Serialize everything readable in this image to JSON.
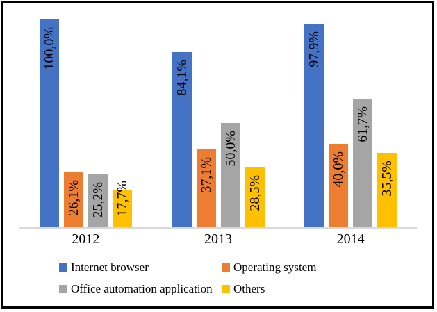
{
  "window": {
    "background": "#ffffff",
    "border_color": "#000000"
  },
  "chart_data": {
    "type": "bar",
    "title": "",
    "xlabel": "",
    "ylabel": "",
    "categories": [
      "2012",
      "2013",
      "2014"
    ],
    "series": [
      {
        "name": "Internet browser",
        "color": "#4472C4",
        "values": [
          100.0,
          84.1,
          97.9
        ],
        "value_labels": [
          "100,0%",
          "84,1%",
          "97,9%"
        ]
      },
      {
        "name": "Operating system",
        "color": "#ED7D31",
        "values": [
          26.1,
          37.1,
          40.0
        ],
        "value_labels": [
          "26,1%",
          "37,1%",
          "40,0%"
        ]
      },
      {
        "name": "Office automation application",
        "color": "#A5A5A5",
        "values": [
          25.2,
          50.0,
          61.7
        ],
        "value_labels": [
          "25,2%",
          "50,0%",
          "61,7%"
        ]
      },
      {
        "name": "Others",
        "color": "#FFC000",
        "values": [
          17.7,
          28.5,
          35.5
        ],
        "value_labels": [
          "17,7%",
          "28,5%",
          "35,5%"
        ]
      }
    ],
    "ylim": [
      0,
      100
    ],
    "grid": false,
    "y_axis_visible": false,
    "axis_line_color": "#D9D9D9",
    "text_color": "#000000",
    "legend_position": "bottom",
    "value_label_style": "rotated-90-inside-end, comma decimal separator"
  }
}
